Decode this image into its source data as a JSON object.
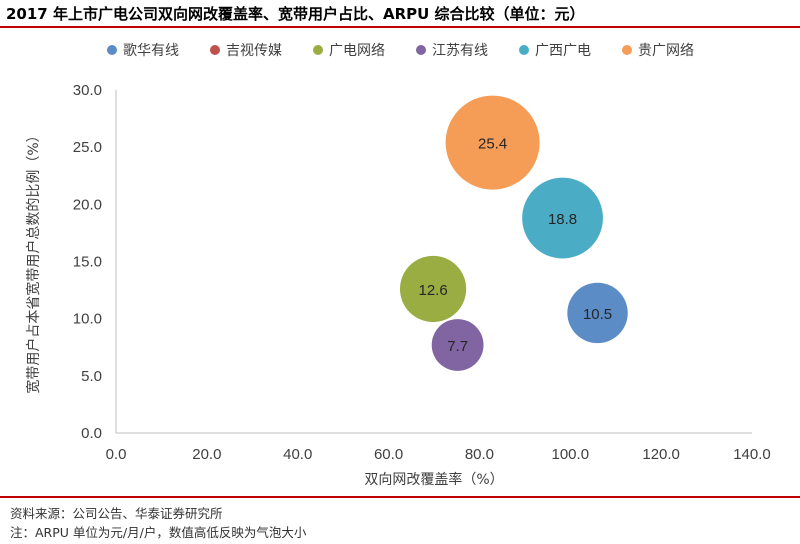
{
  "header": {
    "title": "2017 年上市广电公司双向网改覆盖率、宽带用户占比、ARPU 综合比较（单位：元）"
  },
  "footer": {
    "source": "资料来源：公司公告、华泰证券研究所",
    "note": "注：ARPU 单位为元/月/户，数值高低反映为气泡大小"
  },
  "chart_data": {
    "type": "bubble",
    "xlabel": "双向网改覆盖率（%）",
    "ylabel": "宽带用户占本省宽带用户总数的比例（%）",
    "xlim": [
      0,
      140
    ],
    "ylim": [
      0,
      30
    ],
    "xticks": [
      "0.0",
      "20.0",
      "40.0",
      "60.0",
      "80.0",
      "100.0",
      "120.0",
      "140.0"
    ],
    "yticks": [
      "0.0",
      "5.0",
      "10.0",
      "15.0",
      "20.0",
      "25.0",
      "30.0"
    ],
    "xtick_values": [
      0,
      20,
      40,
      60,
      80,
      100,
      120,
      140
    ],
    "ytick_values": [
      0,
      5,
      10,
      15,
      20,
      25,
      30
    ],
    "grid": false,
    "legend_position": "top",
    "series": [
      {
        "name": "歌华有线",
        "color": "#5b8cc6",
        "x": 106,
        "y": 10.5,
        "size": 10.5,
        "label": "10.5"
      },
      {
        "name": "吉视传媒",
        "color": "#c0504d",
        "x": null,
        "y": null,
        "size": null,
        "label": ""
      },
      {
        "name": "广电网络",
        "color": "#9aad43",
        "x": 69.8,
        "y": 12.6,
        "size": 12.6,
        "label": "12.6"
      },
      {
        "name": "江苏有线",
        "color": "#8065a2",
        "x": 75.2,
        "y": 7.7,
        "size": 7.7,
        "label": "7.7"
      },
      {
        "name": "广西广电",
        "color": "#4bacc6",
        "x": 98.3,
        "y": 18.8,
        "size": 18.8,
        "label": "18.8"
      },
      {
        "name": "贵广网络",
        "color": "#f59d57",
        "x": 82.9,
        "y": 25.4,
        "size": 25.4,
        "label": "25.4"
      }
    ]
  }
}
